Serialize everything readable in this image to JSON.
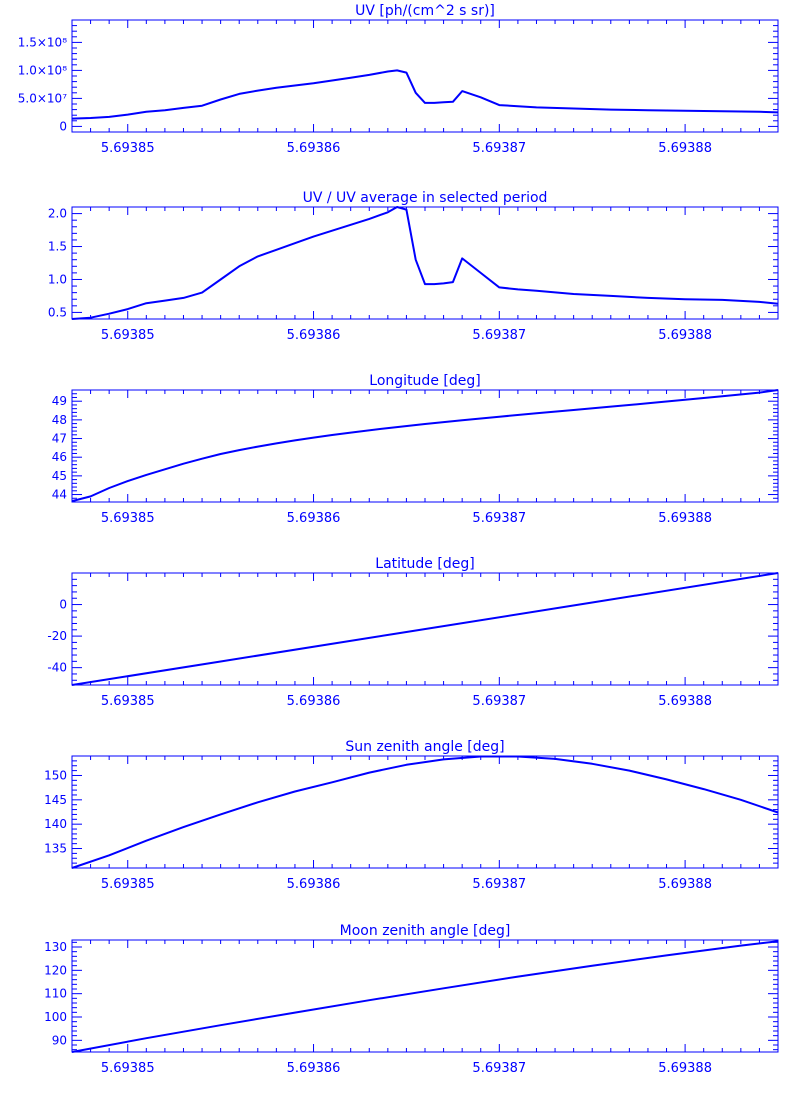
{
  "style": {
    "color": "#0000ff",
    "background": "#ffffff"
  },
  "x_ticks": [
    "5.69385",
    "5.69386",
    "5.69387",
    "5.69388"
  ],
  "chart_data": [
    {
      "type": "line",
      "title": "UV [ph/(cm^2 s sr)]",
      "xlim": [
        5.693847,
        5.693885
      ],
      "ylim": [
        -10000000,
        190000000
      ],
      "yticks": [
        {
          "v": 0,
          "label": "0"
        },
        {
          "v": 50000000,
          "label": "5.0×10⁷"
        },
        {
          "v": 100000000,
          "label": "1.0×10⁸"
        },
        {
          "v": 150000000,
          "label": "1.5×10⁸"
        }
      ],
      "series": [
        {
          "x": [
            5.693847,
            5.693848,
            5.693849,
            5.69385,
            5.693851,
            5.693852,
            5.693853,
            5.693854,
            5.693855,
            5.693856,
            5.693857,
            5.693858,
            5.693859,
            5.69386,
            5.693861,
            5.693862,
            5.693863,
            5.693864,
            5.6938645,
            5.693865,
            5.6938655,
            5.693866,
            5.6938665,
            5.693867,
            5.6938675,
            5.693868,
            5.693869,
            5.69387,
            5.693871,
            5.693872,
            5.693874,
            5.693876,
            5.693878,
            5.69388,
            5.693882,
            5.693884,
            5.693885
          ],
          "y": [
            14000000,
            15000000,
            17000000,
            21000000,
            26000000,
            29000000,
            33000000,
            37000000,
            48000000,
            58000000,
            64000000,
            69000000,
            73000000,
            77000000,
            82000000,
            87000000,
            92000000,
            98000000,
            100000000,
            96000000,
            60000000,
            42000000,
            42000000,
            43000000,
            44000000,
            63000000,
            52000000,
            38000000,
            36000000,
            34000000,
            32000000,
            30000000,
            29000000,
            28000000,
            27000000,
            26000000,
            25000000
          ]
        }
      ]
    },
    {
      "type": "line",
      "title": "UV / UV average in selected period",
      "xlim": [
        5.693847,
        5.693885
      ],
      "ylim": [
        0.4,
        2.1
      ],
      "yticks": [
        {
          "v": 0.5,
          "label": "0.5"
        },
        {
          "v": 1.0,
          "label": "1.0"
        },
        {
          "v": 1.5,
          "label": "1.5"
        },
        {
          "v": 2.0,
          "label": "2.0"
        }
      ],
      "series": [
        {
          "x": [
            5.693847,
            5.693848,
            5.693849,
            5.69385,
            5.693851,
            5.693852,
            5.693853,
            5.693854,
            5.693855,
            5.693856,
            5.693857,
            5.693858,
            5.693859,
            5.69386,
            5.693861,
            5.693862,
            5.693863,
            5.693864,
            5.6938645,
            5.693865,
            5.6938655,
            5.693866,
            5.6938665,
            5.693867,
            5.6938675,
            5.693868,
            5.693869,
            5.69387,
            5.693871,
            5.693872,
            5.693874,
            5.693876,
            5.693878,
            5.69388,
            5.693882,
            5.693884,
            5.693885
          ],
          "y": [
            0.4,
            0.42,
            0.48,
            0.55,
            0.64,
            0.68,
            0.72,
            0.8,
            1.0,
            1.2,
            1.35,
            1.45,
            1.55,
            1.65,
            1.74,
            1.83,
            1.92,
            2.02,
            2.1,
            2.06,
            1.3,
            0.93,
            0.93,
            0.94,
            0.96,
            1.32,
            1.1,
            0.88,
            0.85,
            0.83,
            0.78,
            0.75,
            0.72,
            0.7,
            0.69,
            0.66,
            0.63
          ]
        }
      ]
    },
    {
      "type": "line",
      "title": "Longitude [deg]",
      "xlim": [
        5.693847,
        5.693885
      ],
      "ylim": [
        43.6,
        49.6
      ],
      "yticks": [
        {
          "v": 44,
          "label": "44"
        },
        {
          "v": 45,
          "label": "45"
        },
        {
          "v": 46,
          "label": "46"
        },
        {
          "v": 47,
          "label": "47"
        },
        {
          "v": 48,
          "label": "48"
        },
        {
          "v": 49,
          "label": "49"
        }
      ],
      "series": [
        {
          "x": [
            5.693847,
            5.693848,
            5.693849,
            5.69385,
            5.693851,
            5.693852,
            5.693853,
            5.693854,
            5.693855,
            5.693856,
            5.693857,
            5.693858,
            5.693859,
            5.69386,
            5.693861,
            5.693862,
            5.693864,
            5.693866,
            5.693868,
            5.69387,
            5.693872,
            5.693874,
            5.693876,
            5.693878,
            5.69388,
            5.693882,
            5.693884,
            5.693885
          ],
          "y": [
            43.65,
            43.9,
            44.35,
            44.72,
            45.05,
            45.35,
            45.65,
            45.92,
            46.17,
            46.38,
            46.57,
            46.74,
            46.9,
            47.05,
            47.19,
            47.32,
            47.56,
            47.78,
            47.98,
            48.17,
            48.35,
            48.53,
            48.71,
            48.89,
            49.08,
            49.27,
            49.46,
            49.6
          ]
        }
      ]
    },
    {
      "type": "line",
      "title": "Latitude [deg]",
      "xlim": [
        5.693847,
        5.693885
      ],
      "ylim": [
        -51,
        20
      ],
      "yticks": [
        {
          "v": -40,
          "label": "-40"
        },
        {
          "v": -20,
          "label": "-20"
        },
        {
          "v": 0,
          "label": "0"
        }
      ],
      "series": [
        {
          "x": [
            5.693847,
            5.693855,
            5.693865,
            5.693875,
            5.693885
          ],
          "y": [
            -51,
            -36.1,
            -17.4,
            1.3,
            20
          ]
        }
      ]
    },
    {
      "type": "line",
      "title": "Sun zenith angle [deg]",
      "xlim": [
        5.693847,
        5.693885
      ],
      "ylim": [
        131,
        154
      ],
      "yticks": [
        {
          "v": 135,
          "label": "135"
        },
        {
          "v": 140,
          "label": "140"
        },
        {
          "v": 145,
          "label": "145"
        },
        {
          "v": 150,
          "label": "150"
        }
      ],
      "series": [
        {
          "x": [
            5.693847,
            5.693849,
            5.693851,
            5.693853,
            5.693855,
            5.693857,
            5.693859,
            5.693861,
            5.693863,
            5.693865,
            5.693867,
            5.693869,
            5.693871,
            5.693873,
            5.693875,
            5.693877,
            5.693879,
            5.693881,
            5.693883,
            5.693885
          ],
          "y": [
            131,
            133.6,
            136.6,
            139.4,
            142.0,
            144.5,
            146.7,
            148.6,
            150.6,
            152.2,
            153.3,
            153.9,
            153.9,
            153.4,
            152.4,
            151.0,
            149.2,
            147.2,
            145.0,
            142.4
          ]
        }
      ]
    },
    {
      "type": "line",
      "title": "Moon zenith angle [deg]",
      "xlim": [
        5.693847,
        5.693885
      ],
      "ylim": [
        85,
        133
      ],
      "yticks": [
        {
          "v": 90,
          "label": "90"
        },
        {
          "v": 100,
          "label": "100"
        },
        {
          "v": 110,
          "label": "110"
        },
        {
          "v": 120,
          "label": "120"
        },
        {
          "v": 130,
          "label": "130"
        }
      ],
      "series": [
        {
          "x": [
            5.693847,
            5.693851,
            5.693855,
            5.693859,
            5.693863,
            5.693867,
            5.693871,
            5.693875,
            5.693879,
            5.693883,
            5.693885
          ],
          "y": [
            85,
            90.9,
            96.5,
            101.9,
            107.2,
            112.3,
            117.3,
            122.0,
            126.4,
            130.6,
            132.5
          ]
        }
      ]
    }
  ]
}
